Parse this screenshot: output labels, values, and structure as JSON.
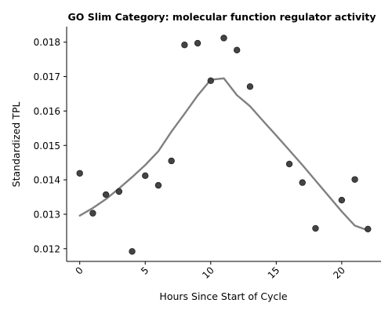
{
  "chart_data": {
    "type": "scatter",
    "title": "GO Slim Category: molecular function regulator activity",
    "xlabel": "Hours Since Start of Cycle",
    "ylabel": "Standardized TPL",
    "xlim": [
      -1,
      23
    ],
    "ylim": [
      0.01163,
      0.01845
    ],
    "xticks": [
      0,
      5,
      10,
      15,
      20
    ],
    "yticks": [
      0.012,
      0.013,
      0.014,
      0.015,
      0.016,
      0.017,
      0.018
    ],
    "ytick_labels": [
      "0.012",
      "0.013",
      "0.014",
      "0.015",
      "0.016",
      "0.017",
      "0.018"
    ],
    "grid": false,
    "points": {
      "x": [
        0,
        1,
        2,
        3,
        4,
        5,
        6,
        7,
        8,
        9,
        10,
        11,
        12,
        13,
        16,
        17,
        18,
        20,
        21,
        22
      ],
      "y": [
        0.01419,
        0.01303,
        0.01357,
        0.01366,
        0.01192,
        0.01412,
        0.01384,
        0.01455,
        0.01792,
        0.01797,
        0.01688,
        0.01812,
        0.01777,
        0.01671,
        0.01446,
        0.01392,
        0.01259,
        0.01341,
        0.01401,
        0.01257
      ]
    },
    "trend_line": {
      "x": [
        0,
        1,
        2,
        3,
        4,
        5,
        6,
        7,
        8,
        9,
        10,
        11,
        12,
        13,
        14,
        15,
        16,
        17,
        18,
        19,
        20,
        21,
        22
      ],
      "y": [
        0.01296,
        0.01318,
        0.01344,
        0.01375,
        0.01408,
        0.01443,
        0.01483,
        0.0154,
        0.01592,
        0.01645,
        0.01691,
        0.01695,
        0.01646,
        0.01614,
        0.01571,
        0.01529,
        0.01486,
        0.01443,
        0.01398,
        0.01353,
        0.01308,
        0.01267,
        0.01253
      ]
    },
    "colors": {
      "points": "#3a3a3a",
      "trend": "#808080"
    }
  }
}
